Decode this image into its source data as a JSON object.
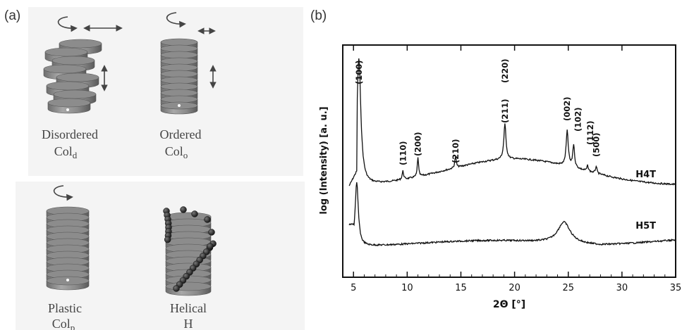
{
  "panel_a": {
    "label": "(a)",
    "columns": [
      {
        "name": "Disordered",
        "sub_main": "Col",
        "sub_index": "d"
      },
      {
        "name": "Ordered",
        "sub_main": "Col",
        "sub_index": "o"
      },
      {
        "name": "Plastic",
        "sub_main": "Col",
        "sub_index": "p"
      },
      {
        "name": "Helical",
        "sub_main": "H",
        "sub_index": ""
      }
    ]
  },
  "panel_b": {
    "label": "(b)",
    "chart_data": {
      "type": "line",
      "xlabel": "2Θ [°]",
      "ylabel": "log (Intensity) [a. u.]",
      "xlim": [
        4,
        35
      ],
      "xticks": [
        5,
        10,
        15,
        20,
        25,
        30,
        35
      ],
      "grid": false,
      "series": [
        {
          "name": "H4T",
          "peaks": [
            {
              "label": "(100)",
              "x": 5.5
            },
            {
              "label": "(110)",
              "x": 9.6
            },
            {
              "label": "(200)",
              "x": 11.0
            },
            {
              "label": "(210)",
              "x": 14.5
            },
            {
              "label": "(211)",
              "x": 19.1
            },
            {
              "label": "(220)",
              "x": 19.1
            },
            {
              "label": "(002)",
              "x": 24.9
            },
            {
              "label": "(102)",
              "x": 25.5
            },
            {
              "label": "(112)",
              "x": 26.8
            },
            {
              "label": "(500)",
              "x": 27.6
            }
          ]
        },
        {
          "name": "H5T",
          "peaks": [
            {
              "label": "",
              "x": 5.3
            },
            {
              "label": "",
              "x": 24.6
            }
          ]
        }
      ]
    }
  }
}
